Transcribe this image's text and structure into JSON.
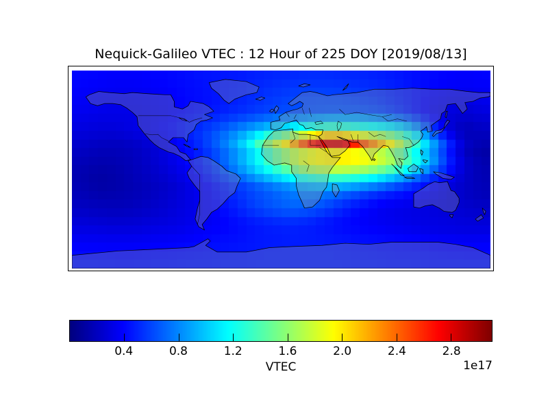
{
  "chart_data": {
    "type": "heatmap",
    "title": "Nequick-Galileo VTEC : 12 Hour of 225 DOY [2019/08/13]",
    "projection": "equirectangular-world-map",
    "lon_range_deg": [
      -180,
      180
    ],
    "lat_range_deg": [
      -90,
      90
    ],
    "lon_centers_deg": [
      -172.5,
      -157.5,
      -142.5,
      -127.5,
      -112.5,
      -97.5,
      -82.5,
      -67.5,
      -52.5,
      -37.5,
      -22.5,
      -7.5,
      7.5,
      22.5,
      37.5,
      52.5,
      67.5,
      82.5,
      97.5,
      112.5,
      127.5,
      142.5,
      157.5,
      172.5
    ],
    "lat_centers_deg": [
      85,
      75,
      65,
      55,
      45,
      35,
      25,
      15,
      5,
      -5,
      -15,
      -25,
      -35,
      -45,
      -55,
      -65,
      -75,
      -85
    ],
    "values_1e17": [
      [
        0.4,
        0.39,
        0.38,
        0.38,
        0.39,
        0.4,
        0.42,
        0.44,
        0.45,
        0.46,
        0.48,
        0.5,
        0.51,
        0.52,
        0.52,
        0.51,
        0.5,
        0.48,
        0.46,
        0.43,
        0.41,
        0.39,
        0.38,
        0.39
      ],
      [
        0.39,
        0.37,
        0.36,
        0.36,
        0.37,
        0.39,
        0.41,
        0.43,
        0.45,
        0.47,
        0.5,
        0.53,
        0.55,
        0.56,
        0.56,
        0.55,
        0.53,
        0.51,
        0.48,
        0.44,
        0.4,
        0.37,
        0.36,
        0.37
      ],
      [
        0.37,
        0.35,
        0.34,
        0.34,
        0.35,
        0.37,
        0.4,
        0.42,
        0.45,
        0.48,
        0.52,
        0.56,
        0.59,
        0.61,
        0.61,
        0.6,
        0.57,
        0.54,
        0.49,
        0.44,
        0.38,
        0.34,
        0.32,
        0.34
      ],
      [
        0.35,
        0.33,
        0.32,
        0.32,
        0.34,
        0.36,
        0.4,
        0.43,
        0.47,
        0.51,
        0.55,
        0.59,
        0.61,
        0.62,
        0.63,
        0.63,
        0.62,
        0.59,
        0.53,
        0.45,
        0.36,
        0.3,
        0.27,
        0.3
      ],
      [
        0.32,
        0.3,
        0.3,
        0.31,
        0.34,
        0.38,
        0.43,
        0.48,
        0.54,
        0.61,
        0.68,
        0.76,
        0.82,
        0.88,
        0.93,
        0.95,
        0.93,
        0.88,
        0.8,
        0.65,
        0.45,
        0.28,
        0.22,
        0.25
      ],
      [
        0.29,
        0.27,
        0.27,
        0.3,
        0.34,
        0.4,
        0.47,
        0.56,
        0.66,
        0.8,
        0.95,
        1.1,
        1.25,
        1.42,
        1.55,
        1.52,
        1.42,
        1.35,
        1.25,
        1.05,
        0.65,
        0.3,
        0.16,
        0.2
      ],
      [
        0.24,
        0.21,
        0.2,
        0.22,
        0.27,
        0.34,
        0.43,
        0.55,
        0.72,
        0.95,
        1.3,
        1.75,
        2.15,
        2.7,
        3.0,
        3.02,
        2.65,
        2.3,
        1.9,
        1.45,
        0.98,
        0.55,
        0.22,
        0.16
      ],
      [
        0.2,
        0.17,
        0.17,
        0.19,
        0.24,
        0.3,
        0.39,
        0.5,
        0.65,
        0.85,
        1.1,
        1.4,
        1.65,
        1.8,
        1.9,
        1.92,
        1.85,
        1.75,
        1.55,
        1.25,
        0.9,
        0.5,
        0.2,
        0.12
      ],
      [
        0.17,
        0.14,
        0.15,
        0.18,
        0.23,
        0.29,
        0.37,
        0.49,
        0.64,
        0.86,
        1.12,
        1.42,
        1.68,
        1.92,
        1.98,
        2.0,
        1.96,
        1.85,
        1.65,
        1.32,
        0.95,
        0.54,
        0.25,
        0.15
      ],
      [
        0.15,
        0.11,
        0.13,
        0.17,
        0.21,
        0.26,
        0.33,
        0.43,
        0.56,
        0.72,
        0.9,
        1.08,
        1.24,
        1.38,
        1.46,
        1.46,
        1.38,
        1.25,
        1.08,
        0.85,
        0.6,
        0.4,
        0.23,
        0.16
      ],
      [
        0.16,
        0.12,
        0.13,
        0.16,
        0.19,
        0.23,
        0.29,
        0.37,
        0.46,
        0.56,
        0.66,
        0.76,
        0.85,
        0.92,
        0.95,
        0.93,
        0.86,
        0.76,
        0.64,
        0.52,
        0.4,
        0.3,
        0.22,
        0.17
      ],
      [
        0.18,
        0.15,
        0.15,
        0.17,
        0.2,
        0.24,
        0.29,
        0.35,
        0.43,
        0.52,
        0.6,
        0.66,
        0.72,
        0.74,
        0.7,
        0.62,
        0.54,
        0.46,
        0.41,
        0.37,
        0.33,
        0.28,
        0.22,
        0.18
      ],
      [
        0.21,
        0.19,
        0.18,
        0.19,
        0.22,
        0.26,
        0.3,
        0.35,
        0.41,
        0.49,
        0.58,
        0.65,
        0.69,
        0.67,
        0.6,
        0.5,
        0.42,
        0.36,
        0.33,
        0.31,
        0.29,
        0.27,
        0.24,
        0.22
      ],
      [
        0.26,
        0.24,
        0.23,
        0.24,
        0.26,
        0.28,
        0.31,
        0.34,
        0.38,
        0.43,
        0.48,
        0.52,
        0.54,
        0.52,
        0.47,
        0.42,
        0.38,
        0.35,
        0.33,
        0.31,
        0.3,
        0.29,
        0.27,
        0.26
      ],
      [
        0.31,
        0.3,
        0.29,
        0.29,
        0.31,
        0.32,
        0.34,
        0.37,
        0.39,
        0.42,
        0.45,
        0.47,
        0.48,
        0.47,
        0.45,
        0.42,
        0.4,
        0.38,
        0.36,
        0.34,
        0.32,
        0.31,
        0.3,
        0.3
      ],
      [
        0.36,
        0.35,
        0.35,
        0.35,
        0.36,
        0.37,
        0.38,
        0.4,
        0.42,
        0.43,
        0.45,
        0.46,
        0.47,
        0.47,
        0.46,
        0.45,
        0.43,
        0.42,
        0.41,
        0.4,
        0.38,
        0.37,
        0.36,
        0.36
      ],
      [
        0.4,
        0.4,
        0.39,
        0.39,
        0.4,
        0.41,
        0.42,
        0.43,
        0.44,
        0.45,
        0.46,
        0.47,
        0.47,
        0.47,
        0.47,
        0.46,
        0.45,
        0.44,
        0.43,
        0.43,
        0.42,
        0.41,
        0.4,
        0.4
      ],
      [
        0.44,
        0.44,
        0.43,
        0.43,
        0.44,
        0.44,
        0.45,
        0.45,
        0.46,
        0.46,
        0.47,
        0.47,
        0.47,
        0.47,
        0.47,
        0.47,
        0.46,
        0.46,
        0.45,
        0.45,
        0.44,
        0.44,
        0.44,
        0.44
      ]
    ],
    "vmin_1e17": 0.0,
    "vmax_1e17": 3.1,
    "colormap": "jet",
    "colorbar": {
      "orientation": "horizontal",
      "label": "VTEC",
      "offset_text": "1e17",
      "ticks_1e17": [
        0.4,
        0.8,
        1.2,
        1.6,
        2.0,
        2.4,
        2.8
      ]
    }
  },
  "colors": {
    "background": "#ffffff",
    "frame": "#000000",
    "text": "#000000",
    "coastline": "#000000",
    "land_overlay": "rgba(145,148,160,0.33)"
  }
}
